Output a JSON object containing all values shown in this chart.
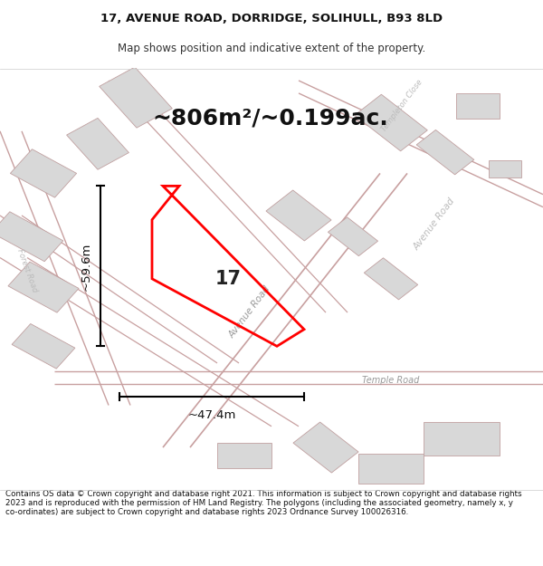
{
  "title_line1": "17, AVENUE ROAD, DORRIDGE, SOLIHULL, B93 8LD",
  "title_line2": "Map shows position and indicative extent of the property.",
  "area_text": "~806m²/~0.199ac.",
  "label_17": "17",
  "dim_width": "~47.4m",
  "dim_height": "~59.6m",
  "road_label_avenue": "Avenue Road",
  "road_label_temple": "Temple Road",
  "road_label_templeton": "Templeton Close",
  "road_label_forest": "Forest Road",
  "footer_text": "Contains OS data © Crown copyright and database right 2021. This information is subject to Crown copyright and database rights 2023 and is reproduced with the permission of HM Land Registry. The polygons (including the associated geometry, namely x, y co-ordinates) are subject to Crown copyright and database rights 2023 Ordnance Survey 100026316.",
  "map_bg": "#f0eeee",
  "road_line_color": "#c8a0a0",
  "building_fill": "#d8d8d8",
  "building_edge": "#c0a0a0"
}
